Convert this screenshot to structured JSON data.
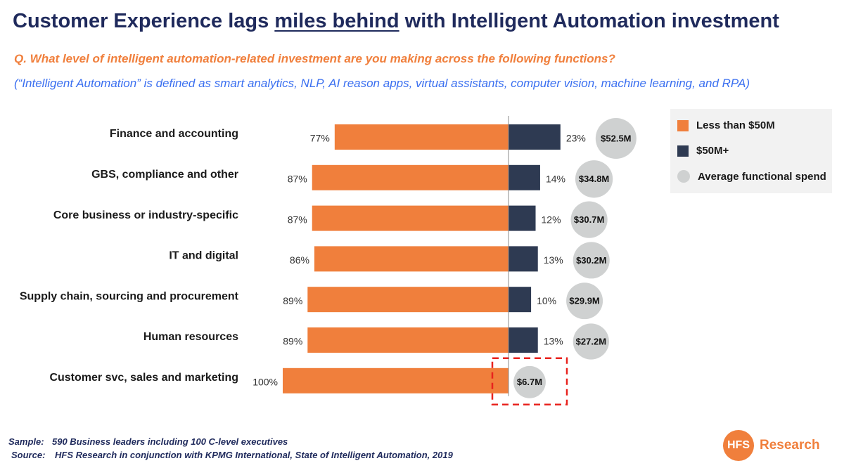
{
  "header": {
    "title_pre": "Customer Experience lags ",
    "title_em": "miles behind",
    "title_post": " with Intelligent Automation investment",
    "question": "Q. What level of intelligent automation-related investment are you making across the following functions?",
    "definition": "(“Intelligent Automation”  is defined as smart analytics, NLP, AI reason apps, virtual assistants, computer vision, machine learning, and RPA)"
  },
  "colors": {
    "less": "#f07f3c",
    "more": "#2e3a52",
    "avg": "#cfd1d1",
    "highlight": "#e8231e"
  },
  "legend": {
    "less": "Less than $50M",
    "more": "$50M+",
    "avg": "Average functional spend"
  },
  "chart_data": {
    "type": "bar",
    "orientation": "horizontal-diverging",
    "categories": [
      "Finance and accounting",
      "GBS, compliance and other",
      "Core business or industry-specific",
      "IT and digital",
      "Supply chain, sourcing and procurement",
      "Human resources",
      "Customer svc, sales and marketing"
    ],
    "series": [
      {
        "name": "Less than $50M",
        "values": [
          77,
          87,
          87,
          86,
          89,
          89,
          100
        ],
        "labels": [
          "77%",
          "87%",
          "87%",
          "86%",
          "89%",
          "89%",
          "100%"
        ]
      },
      {
        "name": "$50M+",
        "values": [
          23,
          14,
          12,
          13,
          10,
          13,
          0
        ],
        "labels": [
          "23%",
          "14%",
          "12%",
          "13%",
          "10%",
          "13%",
          ""
        ]
      }
    ],
    "average_spend": {
      "name": "Average functional spend",
      "values": [
        52.5,
        34.8,
        30.7,
        30.2,
        29.9,
        27.2,
        6.7
      ],
      "labels": [
        "$52.5M",
        "$34.8M",
        "$30.7M",
        "$30.2M",
        "$29.9M",
        "$27.2M",
        "$6.7M"
      ]
    },
    "highlighted_category": "Customer svc, sales and marketing",
    "legend_position": "top-right",
    "grid": false
  },
  "footer": {
    "sample_key": "Sample:",
    "sample_text": "590 Business leaders including 100 C-level executives",
    "source_key": "Source:",
    "source_text": "HFS Research in conjunction with KPMG International, State of Intelligent Automation, 2019",
    "logo_badge": "HFS",
    "logo_word": "Research"
  }
}
